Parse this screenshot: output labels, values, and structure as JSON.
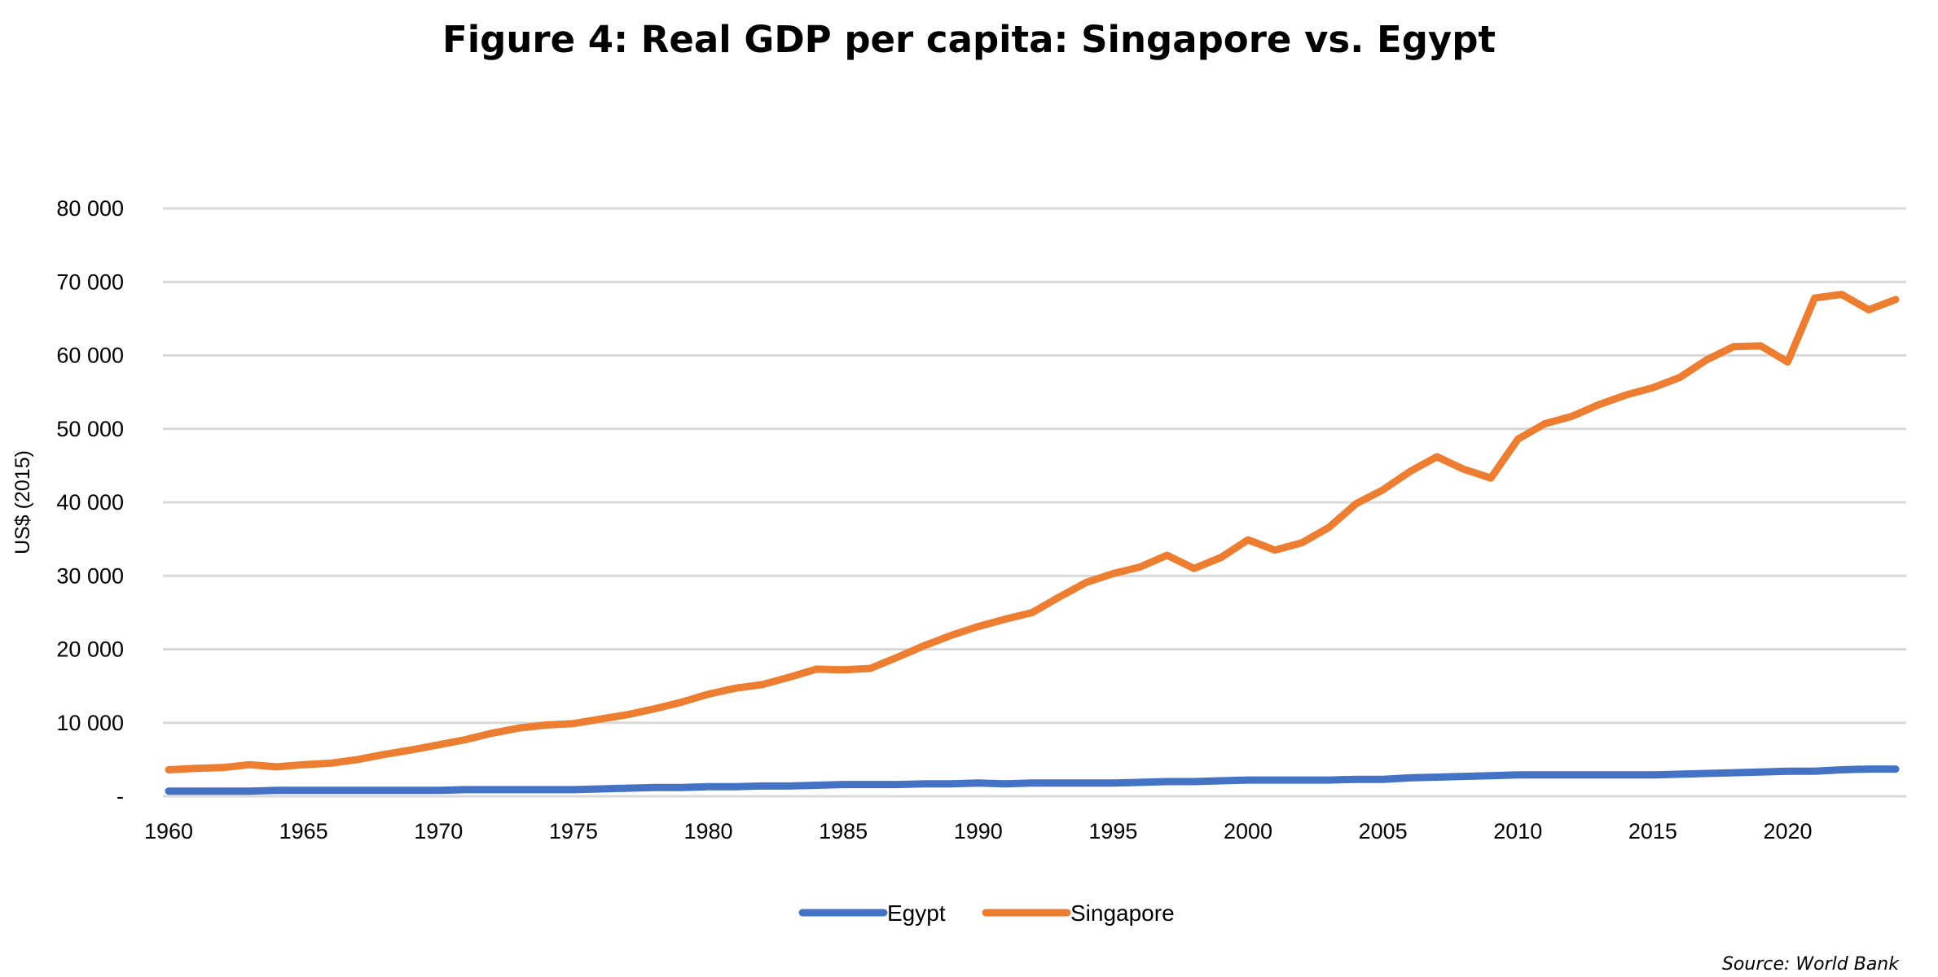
{
  "chart_data": {
    "type": "line",
    "title": "Figure 4: Real GDP per capita: Singapore vs. Egypt",
    "xlabel": "",
    "ylabel": "US$ (2015)",
    "ylim": [
      0,
      80000
    ],
    "yticks": [
      0,
      10000,
      20000,
      30000,
      40000,
      50000,
      60000,
      70000,
      80000
    ],
    "ytick_labels": [
      "-",
      "10 000",
      "20 000",
      "30 000",
      "40 000",
      "50 000",
      "60 000",
      "70 000",
      "80 000"
    ],
    "xlim": [
      1960,
      2024
    ],
    "xtick_labels": [
      "1960",
      "1965",
      "1970",
      "1975",
      "1980",
      "1985",
      "1990",
      "1995",
      "2000",
      "2005",
      "2010",
      "2015",
      "2020"
    ],
    "grid": true,
    "legend_position": "bottom",
    "x_start": 1960,
    "series": [
      {
        "name": "Egypt",
        "color": "#4472C4",
        "values": [
          700,
          700,
          700,
          700,
          800,
          800,
          800,
          800,
          800,
          800,
          800,
          900,
          900,
          900,
          900,
          900,
          1000,
          1100,
          1200,
          1200,
          1300,
          1300,
          1400,
          1400,
          1500,
          1600,
          1600,
          1600,
          1700,
          1700,
          1800,
          1700,
          1800,
          1800,
          1800,
          1800,
          1900,
          2000,
          2000,
          2100,
          2200,
          2200,
          2200,
          2200,
          2300,
          2300,
          2500,
          2600,
          2700,
          2800,
          2900,
          2900,
          2900,
          2900,
          2900,
          2900,
          3000,
          3100,
          3200,
          3300,
          3400,
          3400,
          3600,
          3700,
          3700
        ]
      },
      {
        "name": "Singapore",
        "color": "#ED7D31",
        "values": [
          3600,
          3800,
          3900,
          4300,
          4000,
          4300,
          4500,
          5000,
          5700,
          6300,
          7000,
          7700,
          8600,
          9300,
          9700,
          9900,
          10500,
          11100,
          11900,
          12800,
          13900,
          14700,
          15200,
          16200,
          17300,
          17200,
          17400,
          18900,
          20500,
          21900,
          23100,
          24100,
          25000,
          27100,
          29100,
          30300,
          31200,
          32800,
          31000,
          32500,
          34900,
          33500,
          34500,
          36600,
          39800,
          41700,
          44200,
          46200,
          44500,
          43300,
          48600,
          50700,
          51700,
          53300,
          54600,
          55600,
          57000,
          59400,
          61200,
          61300,
          59100,
          67800,
          68300,
          66200,
          67600
        ]
      }
    ],
    "source": "Source: World Bank"
  }
}
